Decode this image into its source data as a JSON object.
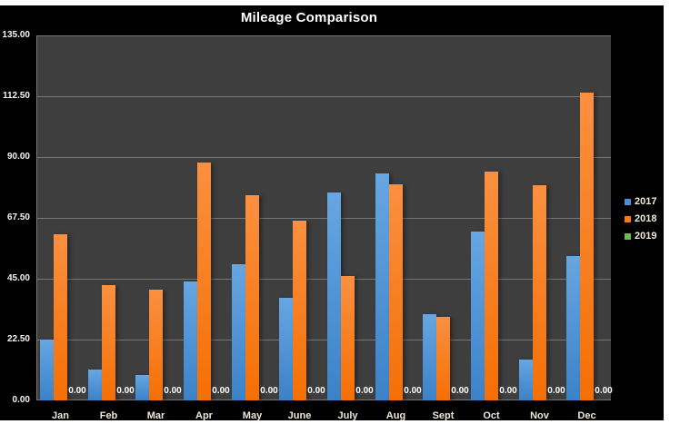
{
  "chart_data": {
    "type": "bar",
    "title": "Mileage Comparison",
    "categories": [
      "Jan",
      "Feb",
      "Mar",
      "Apr",
      "May",
      "June",
      "July",
      "Aug",
      "Sept",
      "Oct",
      "Nov",
      "Dec"
    ],
    "series": [
      {
        "name": "2017",
        "color": "#4a90d8",
        "color_light": "#66a6e2",
        "color_dark": "#3c82c8",
        "values": [
          22.5,
          11.5,
          9.5,
          44,
          50.5,
          38,
          77,
          84,
          32,
          62.5,
          15,
          53.5
        ]
      },
      {
        "name": "2018",
        "color": "#f57a10",
        "color_light": "#fa9040",
        "color_dark": "#f56f04",
        "values": [
          61.5,
          42.5,
          41,
          88,
          76,
          66.5,
          46,
          80,
          31,
          84.5,
          79.5,
          114
        ]
      },
      {
        "name": "2019",
        "color": "#6abf45",
        "color_light": "#7cca58",
        "color_dark": "#5cb238",
        "values": [
          0,
          0,
          0,
          0,
          0,
          0,
          0,
          0,
          0,
          0,
          0,
          0
        ],
        "show_labels": true,
        "label_format": "0.00"
      }
    ],
    "y_ticks": [
      "135.00",
      "112.50",
      "90.00",
      "67.50",
      "45.00",
      "22.50",
      "0.00"
    ],
    "ylim": [
      0,
      135
    ],
    "xlabel": "",
    "ylabel": "",
    "grid": true,
    "legend_position": "right",
    "colors": {
      "canvas_background": "#000000",
      "plot_background": "#3e3e3e",
      "gridline": "#767676",
      "title_text": "#ffffff",
      "axis_text": "#f5f5f5",
      "category_text": "#efe8d8",
      "data_label_text": "#ffffff"
    }
  }
}
